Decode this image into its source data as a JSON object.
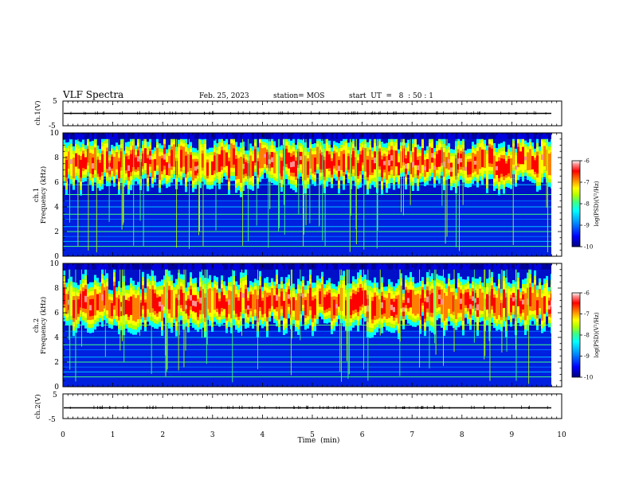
{
  "header": {
    "title": "VLF Spectra",
    "date": "Feb. 25, 2023",
    "station": "station= MOS",
    "start": "start  UT  =   8  : 50 : 1"
  },
  "chart_data": [
    {
      "type": "line",
      "name": "ch1-waveform",
      "ylabel": "ch.1(V)",
      "ylim": [
        -5,
        5
      ],
      "yticks": [
        "5",
        "-5"
      ],
      "baseline": -0.8,
      "series": [
        {
          "name": "ch.1",
          "values": [
            -0.8,
            -0.8
          ]
        }
      ]
    },
    {
      "type": "heatmap",
      "name": "ch1-spectrogram",
      "ylabel": "ch.1\nFrequency (kHz)",
      "ylim": [
        0,
        10
      ],
      "yticks": [
        "0",
        "2",
        "4",
        "6",
        "8",
        "10"
      ],
      "dominant_band_khz": [
        5.0,
        9.5
      ],
      "band_center_khz": 7.6
    },
    {
      "type": "heatmap",
      "name": "ch2-spectrogram",
      "ylabel": "ch.2\nFrequency (kHz)",
      "ylim": [
        0,
        10
      ],
      "yticks": [
        "0",
        "2",
        "4",
        "6",
        "8",
        "10"
      ],
      "dominant_band_khz": [
        4.5,
        9.0
      ],
      "band_center_khz": 6.8
    },
    {
      "type": "line",
      "name": "ch2-waveform",
      "ylabel": "ch.2(V)",
      "ylim": [
        -5,
        5
      ],
      "yticks": [
        "5",
        "-5"
      ],
      "baseline": -0.8,
      "series": [
        {
          "name": "ch.2",
          "values": [
            -0.8,
            -0.8
          ]
        }
      ]
    }
  ],
  "xaxis": {
    "label": "Time  (min)",
    "range": [
      0,
      10
    ],
    "ticks": [
      "0",
      "1",
      "2",
      "3",
      "4",
      "5",
      "6",
      "7",
      "8",
      "9",
      "10"
    ]
  },
  "colorbar": {
    "label": "log(PSD)(V²/Hz)",
    "range": [
      -10,
      -6
    ],
    "ticks": [
      "-6",
      "-7",
      "-8",
      "-9",
      "-10"
    ],
    "colors": [
      "#00007f",
      "#0000ff",
      "#00a0ff",
      "#00ffff",
      "#40ff80",
      "#b0ff00",
      "#ffff00",
      "#ff8000",
      "#ff0000",
      "#ff9090",
      "#ffffff"
    ]
  }
}
